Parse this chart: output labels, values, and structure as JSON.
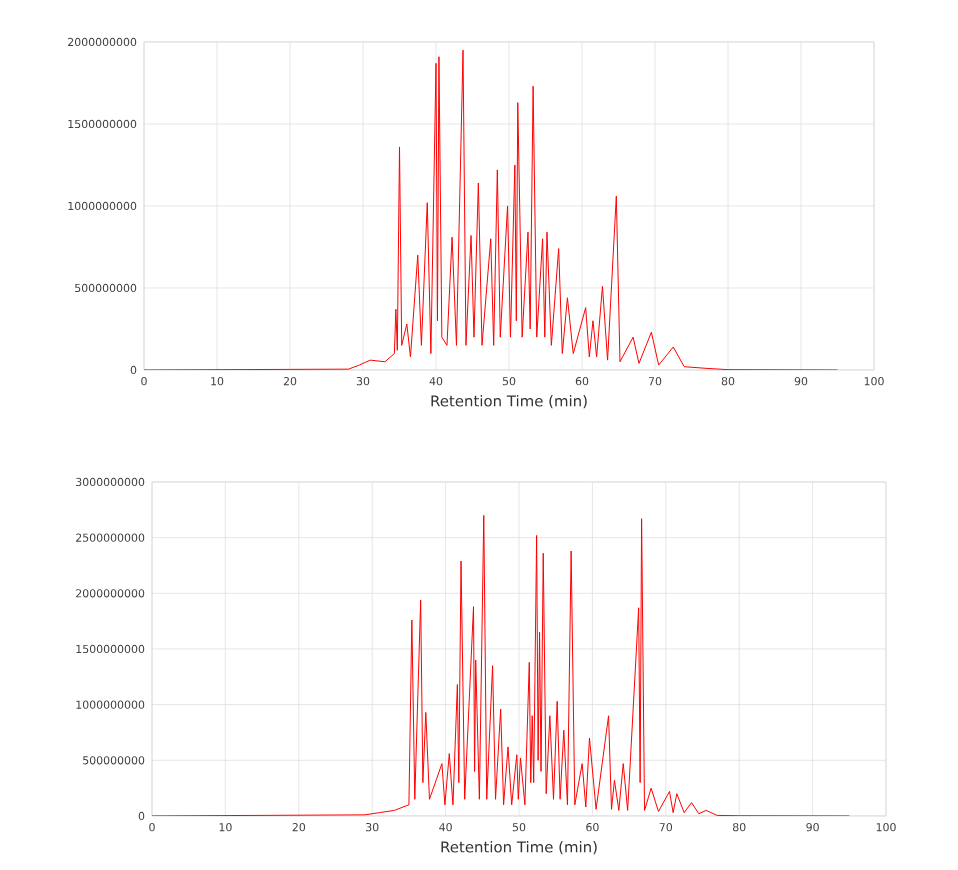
{
  "chart_data": [
    {
      "type": "line",
      "xlabel": "Retention Time (min)",
      "color": "#ff0000",
      "grid": true,
      "xlim": [
        0,
        100
      ],
      "xticks": [
        0,
        10,
        20,
        30,
        40,
        50,
        60,
        70,
        80,
        90,
        100
      ],
      "ylim": [
        0,
        2000000000
      ],
      "yticks": [
        0,
        500000000,
        1000000000,
        1500000000,
        2000000000
      ],
      "x": [
        0,
        28,
        29.5,
        31,
        33,
        34.3,
        34.5,
        34.7,
        35.0,
        35.3,
        36.0,
        36.5,
        37.5,
        38.0,
        38.8,
        39.3,
        40.0,
        40.2,
        40.4,
        40.8,
        41.5,
        42.2,
        42.8,
        43.7,
        44.1,
        44.8,
        45.2,
        45.8,
        46.3,
        47.5,
        47.9,
        48.4,
        48.8,
        49.8,
        50.2,
        50.8,
        51.0,
        51.2,
        51.8,
        52.6,
        52.9,
        53.3,
        53.8,
        54.6,
        54.9,
        55.2,
        55.8,
        56.8,
        57.3,
        58.0,
        58.8,
        60.5,
        61.0,
        61.5,
        62.0,
        62.8,
        63.5,
        64.7,
        65.2,
        67.0,
        67.8,
        69.5,
        70.5,
        72.5,
        74,
        77,
        80,
        95
      ],
      "values": [
        0,
        5000000,
        30000000,
        60000000,
        50000000,
        100000000,
        370000000,
        120000000,
        1360000000,
        150000000,
        280000000,
        80000000,
        700000000,
        150000000,
        1020000000,
        100000000,
        1870000000,
        300000000,
        1910000000,
        200000000,
        150000000,
        810000000,
        150000000,
        1950000000,
        150000000,
        820000000,
        200000000,
        1140000000,
        150000000,
        800000000,
        150000000,
        1220000000,
        200000000,
        1000000000,
        200000000,
        1250000000,
        300000000,
        1630000000,
        200000000,
        840000000,
        250000000,
        1730000000,
        200000000,
        800000000,
        200000000,
        840000000,
        150000000,
        740000000,
        100000000,
        440000000,
        100000000,
        380000000,
        80000000,
        300000000,
        80000000,
        510000000,
        60000000,
        1060000000,
        50000000,
        200000000,
        40000000,
        230000000,
        30000000,
        140000000,
        20000000,
        10000000,
        2000000,
        0
      ]
    },
    {
      "type": "line",
      "xlabel": "Retention Time (min)",
      "color": "#ff0000",
      "grid": true,
      "xlim": [
        0,
        100
      ],
      "xticks": [
        0,
        10,
        20,
        30,
        40,
        50,
        60,
        70,
        80,
        90,
        100
      ],
      "ylim": [
        0,
        3000000000
      ],
      "yticks": [
        0,
        500000000,
        1000000000,
        1500000000,
        2000000000,
        2500000000,
        3000000000
      ],
      "x": [
        0,
        29,
        31,
        33,
        35.0,
        35.4,
        35.8,
        36.6,
        36.9,
        37.3,
        37.8,
        39.5,
        39.9,
        40.5,
        41.0,
        41.6,
        41.8,
        42.1,
        42.6,
        43.8,
        43.95,
        44.1,
        44.6,
        45.2,
        45.6,
        46.4,
        46.8,
        47.5,
        47.9,
        48.5,
        49.0,
        49.7,
        49.9,
        50.2,
        50.8,
        51.4,
        51.6,
        51.8,
        52.0,
        52.4,
        52.6,
        52.8,
        53.0,
        53.3,
        53.7,
        54.2,
        54.7,
        55.2,
        55.6,
        56.1,
        56.6,
        57.1,
        57.6,
        58.6,
        59.1,
        59.6,
        60.5,
        62.2,
        62.6,
        63.0,
        63.6,
        64.2,
        64.8,
        66.3,
        66.5,
        66.7,
        67.1,
        68.0,
        69.0,
        70.5,
        71.0,
        71.5,
        72.5,
        73.5,
        74.5,
        75.5,
        77,
        80,
        95
      ],
      "values": [
        0,
        10000000,
        30000000,
        50000000,
        100000000,
        1760000000,
        150000000,
        1940000000,
        300000000,
        930000000,
        150000000,
        470000000,
        100000000,
        560000000,
        100000000,
        1180000000,
        300000000,
        2290000000,
        150000000,
        1880000000,
        400000000,
        1400000000,
        150000000,
        2700000000,
        150000000,
        1350000000,
        150000000,
        960000000,
        100000000,
        620000000,
        100000000,
        550000000,
        150000000,
        520000000,
        100000000,
        1380000000,
        300000000,
        900000000,
        300000000,
        2520000000,
        500000000,
        1650000000,
        400000000,
        2360000000,
        200000000,
        900000000,
        150000000,
        1030000000,
        150000000,
        770000000,
        100000000,
        2380000000,
        100000000,
        470000000,
        80000000,
        700000000,
        60000000,
        900000000,
        60000000,
        320000000,
        50000000,
        470000000,
        50000000,
        1870000000,
        300000000,
        2670000000,
        50000000,
        250000000,
        40000000,
        220000000,
        30000000,
        200000000,
        30000000,
        120000000,
        20000000,
        50000000,
        5000000,
        2000000,
        0
      ]
    }
  ]
}
